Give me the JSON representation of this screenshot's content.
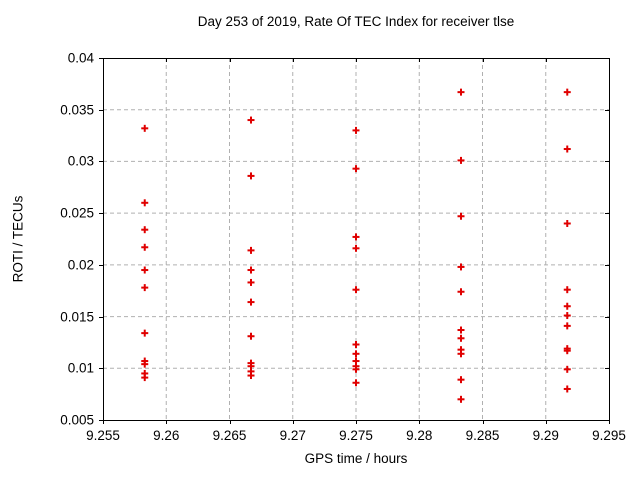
{
  "page": {
    "background": "#ffffff",
    "text_color": "#000000"
  },
  "chart_data": {
    "type": "scatter",
    "title": "Day 253 of 2019, Rate Of TEC Index for receiver tlse",
    "xlabel": "GPS time / hours",
    "ylabel": "ROTI / TECUs",
    "xlim": [
      9.255,
      9.295
    ],
    "ylim": [
      0.005,
      0.04
    ],
    "xticks": {
      "values": [
        9.255,
        9.26,
        9.265,
        9.27,
        9.275,
        9.28,
        9.285,
        9.29,
        9.295
      ],
      "labels": [
        "9.255",
        "9.26",
        "9.265",
        "9.27",
        "9.275",
        "9.28",
        "9.285",
        "9.29",
        "9.295"
      ]
    },
    "yticks": {
      "values": [
        0.005,
        0.01,
        0.015,
        0.02,
        0.025,
        0.03,
        0.035,
        0.04
      ],
      "labels": [
        "0.005",
        "0.01",
        "0.015",
        "0.02",
        "0.025",
        "0.03",
        "0.035",
        "0.04"
      ]
    },
    "grid": "dashed-both-axes",
    "grid_color": "#b0b0b0",
    "border_color": "#000000",
    "legend": "none",
    "marker": {
      "shape": "plus",
      "color": "#e00000",
      "size": 7,
      "stroke": 2
    },
    "series": [
      {
        "name": "ROTI",
        "points": [
          [
            9.2583,
            0.0332
          ],
          [
            9.2583,
            0.026
          ],
          [
            9.2583,
            0.0234
          ],
          [
            9.2583,
            0.0217
          ],
          [
            9.2583,
            0.0195
          ],
          [
            9.2583,
            0.0178
          ],
          [
            9.2583,
            0.0134
          ],
          [
            9.2583,
            0.0107
          ],
          [
            9.2583,
            0.0104
          ],
          [
            9.2583,
            0.0095
          ],
          [
            9.2583,
            0.0091
          ],
          [
            9.2667,
            0.034
          ],
          [
            9.2667,
            0.0286
          ],
          [
            9.2667,
            0.0214
          ],
          [
            9.2667,
            0.0195
          ],
          [
            9.2667,
            0.0183
          ],
          [
            9.2667,
            0.0164
          ],
          [
            9.2667,
            0.0131
          ],
          [
            9.2667,
            0.0105
          ],
          [
            9.2667,
            0.0102
          ],
          [
            9.2667,
            0.0097
          ],
          [
            9.2667,
            0.0093
          ],
          [
            9.275,
            0.033
          ],
          [
            9.275,
            0.0293
          ],
          [
            9.275,
            0.0227
          ],
          [
            9.275,
            0.0216
          ],
          [
            9.275,
            0.0176
          ],
          [
            9.275,
            0.0123
          ],
          [
            9.275,
            0.0114
          ],
          [
            9.275,
            0.0107
          ],
          [
            9.275,
            0.0102
          ],
          [
            9.275,
            0.0099
          ],
          [
            9.275,
            0.0086
          ],
          [
            9.2833,
            0.0367
          ],
          [
            9.2833,
            0.0301
          ],
          [
            9.2833,
            0.0247
          ],
          [
            9.2833,
            0.0198
          ],
          [
            9.2833,
            0.0174
          ],
          [
            9.2833,
            0.0137
          ],
          [
            9.2833,
            0.0129
          ],
          [
            9.2833,
            0.0118
          ],
          [
            9.2833,
            0.0114
          ],
          [
            9.2833,
            0.0089
          ],
          [
            9.2833,
            0.007
          ],
          [
            9.2917,
            0.0367
          ],
          [
            9.2917,
            0.0312
          ],
          [
            9.2917,
            0.024
          ],
          [
            9.2917,
            0.0176
          ],
          [
            9.2917,
            0.016
          ],
          [
            9.2917,
            0.0151
          ],
          [
            9.2917,
            0.0141
          ],
          [
            9.2917,
            0.0119
          ],
          [
            9.2917,
            0.0117
          ],
          [
            9.2917,
            0.0099
          ],
          [
            9.2917,
            0.008
          ]
        ]
      }
    ]
  }
}
